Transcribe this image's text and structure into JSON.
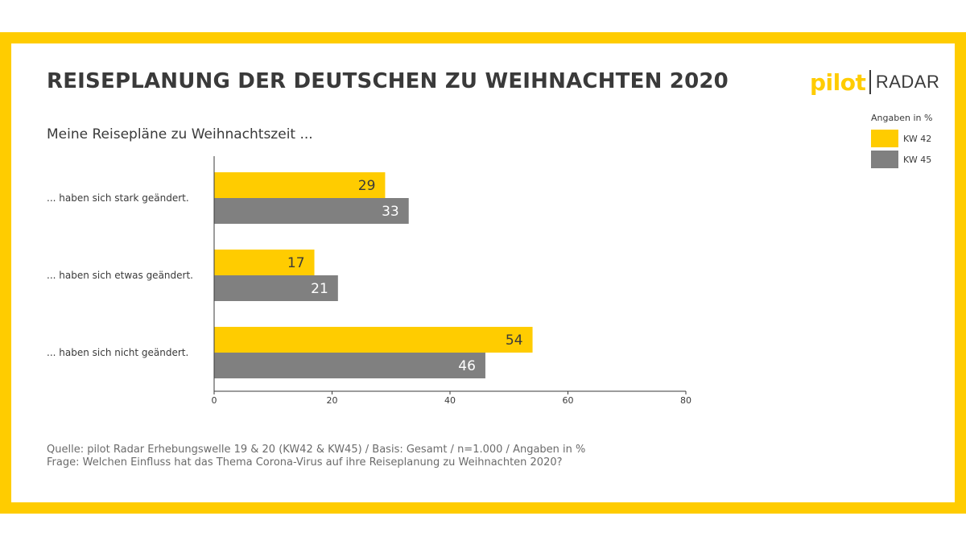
{
  "header": {
    "title": "REISEPLANUNG DER DEUTSCHEN ZU WEIHNACHTEN 2020",
    "subtitle": "Meine Reisepläne zu Weihnachtszeit ..."
  },
  "logo": {
    "brand": "pilot",
    "product": "RADAR"
  },
  "legend": {
    "heading": "Angaben in %"
  },
  "colors": {
    "frame": "#FFCC00",
    "kw42": "#FFCC00",
    "kw45": "#808080",
    "text": "#3a3a3a"
  },
  "chart_data": {
    "type": "bar",
    "orientation": "horizontal",
    "title": "REISEPLANUNG DER DEUTSCHEN ZU WEIHNACHTEN 2020",
    "subtitle": "Meine Reisepläne zu Weihnachtszeit ...",
    "categories": [
      "... haben sich stark geändert.",
      "... haben sich etwas geändert.",
      "... haben sich nicht geändert."
    ],
    "series": [
      {
        "name": "KW 42",
        "color": "#FFCC00",
        "values": [
          29,
          17,
          54
        ]
      },
      {
        "name": "KW 45",
        "color": "#808080",
        "values": [
          33,
          21,
          46
        ]
      }
    ],
    "xlim": [
      0,
      80
    ],
    "xticks": [
      0,
      20,
      40,
      60,
      80
    ],
    "xlabel": "",
    "ylabel": "Angaben in %",
    "legend_position": "top-right",
    "grid": false
  },
  "footer": {
    "source": "Quelle: pilot Radar Erhebungswelle 19 & 20 (KW42 & KW45) / Basis: Gesamt  / n=1.000 / Angaben in %",
    "question": "Frage: Welchen Einfluss hat das Thema Corona-Virus auf ihre Reiseplanung zu Weihnachten 2020?"
  }
}
